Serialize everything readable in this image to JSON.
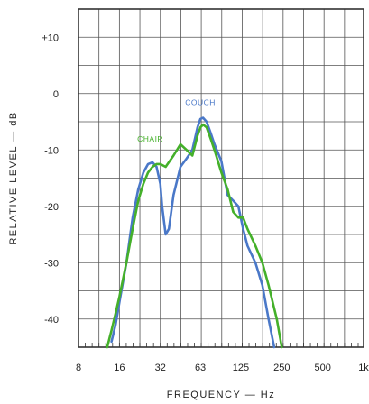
{
  "chart_data": {
    "type": "line",
    "title": "",
    "xlabel": "FREQUENCY — Hz",
    "ylabel": "RELATIVE LEVEL — dB",
    "x_scale": "log2",
    "xlim": [
      8,
      1000
    ],
    "ylim": [
      -45,
      15
    ],
    "x_ticks": [
      8,
      16,
      32,
      63,
      125,
      250,
      500,
      1000
    ],
    "x_tick_labels": [
      "8",
      "16",
      "32",
      "63",
      "125",
      "250",
      "500",
      "1k"
    ],
    "y_ticks": [
      10,
      0,
      -10,
      -20,
      -30,
      -40
    ],
    "y_tick_labels": [
      "+10",
      "0",
      "-10",
      "-20",
      "-30",
      "-40"
    ],
    "grid": true,
    "series": [
      {
        "name": "COUCH",
        "color": "#4a78c8",
        "label_at": [
          63,
          -2
        ],
        "x": [
          14,
          15,
          16,
          18,
          20,
          22,
          24,
          26,
          28,
          30,
          32,
          33,
          35,
          37,
          40,
          45,
          50,
          55,
          60,
          63,
          66,
          70,
          75,
          80,
          90,
          100,
          110,
          120,
          130,
          140,
          160,
          180,
          200,
          220
        ],
        "y": [
          -44,
          -41,
          -37,
          -30,
          -22,
          -17,
          -14,
          -12.5,
          -12.2,
          -13,
          -16,
          -20,
          -25,
          -24,
          -18,
          -13,
          -11.5,
          -10,
          -6,
          -4.5,
          -4.3,
          -5,
          -7,
          -9,
          -12,
          -18,
          -19,
          -20,
          -24,
          -27,
          -30,
          -34,
          -40,
          -45
        ]
      },
      {
        "name": "CHAIR",
        "color": "#44b02a",
        "label_at": [
          27,
          -8.5
        ],
        "x": [
          13,
          14,
          15,
          16,
          18,
          20,
          22,
          24,
          26,
          28,
          30,
          32,
          35,
          40,
          45,
          50,
          55,
          60,
          63,
          66,
          70,
          75,
          80,
          90,
          100,
          110,
          120,
          130,
          140,
          160,
          180,
          200,
          230,
          250
        ],
        "y": [
          -45,
          -42,
          -39,
          -36,
          -30,
          -24,
          -19,
          -16,
          -14,
          -13,
          -12.5,
          -12.5,
          -13,
          -11,
          -9,
          -10,
          -11,
          -7.5,
          -6,
          -5.5,
          -6,
          -8,
          -10,
          -14,
          -17,
          -21,
          -22,
          -22,
          -24,
          -27,
          -30,
          -34,
          -40,
          -45
        ]
      }
    ]
  }
}
